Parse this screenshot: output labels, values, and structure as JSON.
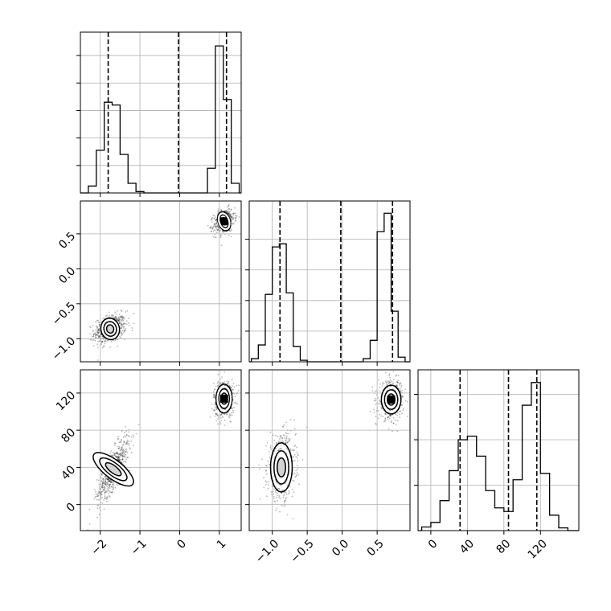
{
  "chart_data": [
    {
      "panel": "hist-x",
      "type": "histogram",
      "parameter": "x",
      "xlim": [
        -2.5,
        1.55
      ],
      "bins": [
        {
          "x0": -2.3,
          "x1": -2.1,
          "count": 0.05
        },
        {
          "x0": -2.1,
          "x1": -1.9,
          "count": 0.31
        },
        {
          "x0": -1.9,
          "x1": -1.7,
          "count": 0.66
        },
        {
          "x0": -1.7,
          "x1": -1.5,
          "count": 0.64
        },
        {
          "x0": -1.5,
          "x1": -1.3,
          "count": 0.28
        },
        {
          "x0": -1.3,
          "x1": -1.1,
          "count": 0.07
        },
        {
          "x0": -1.1,
          "x1": -0.9,
          "count": 0.01
        },
        {
          "x0": 0.7,
          "x1": 0.9,
          "count": 0.18
        },
        {
          "x0": 0.9,
          "x1": 1.1,
          "count": 1.07
        },
        {
          "x0": 1.1,
          "x1": 1.3,
          "count": 0.68
        },
        {
          "x0": 1.3,
          "x1": 1.5,
          "count": 0.07
        }
      ],
      "ylim": [
        0,
        1.17
      ],
      "quantiles": [
        -1.8,
        -0.03,
        1.18
      ],
      "xticks": [],
      "yticks": [
        0.2,
        0.4,
        0.6,
        0.8,
        1.0
      ]
    },
    {
      "panel": "hist-y",
      "type": "histogram",
      "parameter": "y",
      "xlim": [
        -1.33,
        0.97
      ],
      "bins": [
        {
          "x0": -1.3,
          "x1": -1.2,
          "count": 0.02
        },
        {
          "x0": -1.2,
          "x1": -1.1,
          "count": 0.11
        },
        {
          "x0": -1.1,
          "x1": -1.0,
          "count": 0.44
        },
        {
          "x0": -1.0,
          "x1": -0.9,
          "count": 0.75
        },
        {
          "x0": -0.9,
          "x1": -0.8,
          "count": 0.77
        },
        {
          "x0": -0.8,
          "x1": -0.7,
          "count": 0.45
        },
        {
          "x0": -0.7,
          "x1": -0.6,
          "count": 0.1
        },
        {
          "x0": -0.6,
          "x1": -0.5,
          "count": 0.01
        },
        {
          "x0": 0.3,
          "x1": 0.4,
          "count": 0.02
        },
        {
          "x0": 0.4,
          "x1": 0.5,
          "count": 0.14
        },
        {
          "x0": 0.5,
          "x1": 0.6,
          "count": 0.85
        },
        {
          "x0": 0.6,
          "x1": 0.7,
          "count": 0.97
        },
        {
          "x0": 0.7,
          "x1": 0.8,
          "count": 0.33
        },
        {
          "x0": 0.8,
          "x1": 0.9,
          "count": 0.03
        }
      ],
      "ylim": [
        0,
        1.05
      ],
      "quantiles": [
        -0.89,
        -0.02,
        0.72
      ],
      "xticks": [],
      "yticks": [
        0.2,
        0.4,
        0.6,
        0.8
      ]
    },
    {
      "panel": "hist-z",
      "type": "histogram",
      "parameter": "z",
      "xlim": [
        -14,
        162
      ],
      "bins": [
        {
          "x0": -10,
          "x1": 0,
          "count": 0.04
        },
        {
          "x0": 0,
          "x1": 10,
          "count": 0.09
        },
        {
          "x0": 10,
          "x1": 20,
          "count": 0.33
        },
        {
          "x0": 20,
          "x1": 30,
          "count": 0.66
        },
        {
          "x0": 30,
          "x1": 40,
          "count": 1.0
        },
        {
          "x0": 40,
          "x1": 50,
          "count": 1.04
        },
        {
          "x0": 50,
          "x1": 60,
          "count": 0.82
        },
        {
          "x0": 60,
          "x1": 70,
          "count": 0.44
        },
        {
          "x0": 70,
          "x1": 80,
          "count": 0.25
        },
        {
          "x0": 80,
          "x1": 90,
          "count": 0.21
        },
        {
          "x0": 90,
          "x1": 100,
          "count": 0.56
        },
        {
          "x0": 100,
          "x1": 110,
          "count": 1.38
        },
        {
          "x0": 110,
          "x1": 120,
          "count": 1.63
        },
        {
          "x0": 120,
          "x1": 130,
          "count": 0.63
        },
        {
          "x0": 130,
          "x1": 140,
          "count": 0.17
        },
        {
          "x0": 140,
          "x1": 150,
          "count": 0.03
        }
      ],
      "ylim": [
        0,
        1.77
      ],
      "quantiles": [
        32,
        85,
        116
      ],
      "xticks": [
        0,
        40,
        80,
        120
      ],
      "yticks": [
        0.5,
        1.0,
        1.5
      ]
    },
    {
      "panel": "x-y",
      "type": "scatter",
      "x_parameter": "x",
      "y_parameter": "y",
      "xlim": [
        -2.5,
        1.55
      ],
      "ylim": [
        -1.33,
        0.97
      ],
      "clusters": [
        {
          "center": [
            -1.75,
            -0.86
          ],
          "spread": [
            0.2,
            0.1
          ],
          "correlation": 0.3,
          "n": 620
        },
        {
          "center": [
            1.12,
            0.68
          ],
          "spread": [
            0.13,
            0.09
          ],
          "correlation": 0.3,
          "n": 520
        }
      ],
      "xticks": [],
      "yticks": [
        -1.0,
        -0.5,
        0.0,
        0.5
      ],
      "ytick_labels": [
        "−1.0",
        "−0.5",
        "0.0",
        "0.5"
      ]
    },
    {
      "panel": "x-z",
      "type": "scatter",
      "x_parameter": "x",
      "y_parameter": "z",
      "xlim": [
        -2.5,
        1.55
      ],
      "ylim": [
        -28,
        145
      ],
      "clusters": [
        {
          "center": [
            -1.67,
            38
          ],
          "spread": [
            0.2,
            17
          ],
          "correlation": 0.8,
          "n": 620
        },
        {
          "center": [
            1.12,
            114
          ],
          "spread": [
            0.13,
            10
          ],
          "correlation": 0.1,
          "n": 520
        }
      ],
      "xticks": [
        -2,
        -1,
        0,
        1
      ],
      "xtick_labels": [
        "−2",
        "−1",
        "0",
        "1"
      ],
      "yticks": [
        0,
        40,
        80,
        120
      ],
      "ytick_labels": [
        "0",
        "40",
        "80",
        "120"
      ]
    },
    {
      "panel": "y-z",
      "type": "scatter",
      "x_parameter": "y",
      "y_parameter": "z",
      "xlim": [
        -1.33,
        0.97
      ],
      "ylim": [
        -28,
        145
      ],
      "clusters": [
        {
          "center": [
            -0.87,
            40
          ],
          "spread": [
            0.1,
            17
          ],
          "correlation": 0.1,
          "n": 620
        },
        {
          "center": [
            0.7,
            113
          ],
          "spread": [
            0.09,
            10
          ],
          "correlation": 0.1,
          "n": 520
        }
      ],
      "xticks": [
        -1.0,
        -0.5,
        0.0,
        0.5
      ],
      "xtick_labels": [
        "−1.0",
        "−0.5",
        "0.0",
        "0.5"
      ],
      "yticks": []
    }
  ],
  "style": {
    "line_color": "#000000",
    "point_color": "#000000",
    "grid_color": "#b0b0b0",
    "background": "#ffffff"
  }
}
